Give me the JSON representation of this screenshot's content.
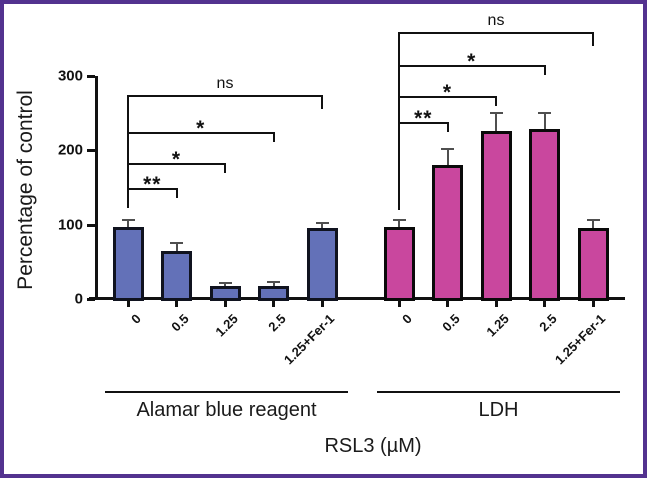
{
  "figure": {
    "border_color": "#53328f",
    "background_color": "#ffffff"
  },
  "chart_data": {
    "type": "bar",
    "title": "",
    "ylabel": "Percentage of control",
    "xlabel": "RSL3 (µM)",
    "ylim": [
      0,
      300
    ],
    "yticks": [
      0,
      100,
      200,
      300
    ],
    "grid": false,
    "legend": null,
    "categories": [
      "0",
      "0.5",
      "1.25",
      "2.5",
      "1.25+Fer-1"
    ],
    "axis_color": "#111111",
    "error_bar_color": "#4f4f4f",
    "groups": [
      {
        "name": "Alamar blue reagent",
        "bar_color": "#6371b8",
        "bar_border_color": "#10131f",
        "values": [
          96,
          65,
          17,
          17,
          95
        ],
        "errors_plus": [
          10,
          10,
          4,
          6,
          7
        ],
        "significance": [
          {
            "from": "0",
            "to": "0.5",
            "label": "**"
          },
          {
            "from": "0",
            "to": "1.25",
            "label": "*"
          },
          {
            "from": "0",
            "to": "2.5",
            "label": "*"
          },
          {
            "from": "0",
            "to": "1.25+Fer-1",
            "label": "ns"
          }
        ]
      },
      {
        "name": "LDH",
        "bar_color": "#c9479e",
        "bar_border_color": "#0a0a0a",
        "values": [
          96,
          180,
          225,
          228,
          95
        ],
        "errors_plus": [
          10,
          21,
          24,
          22,
          11
        ],
        "significance": [
          {
            "from": "0",
            "to": "0.5",
            "label": "**"
          },
          {
            "from": "0",
            "to": "1.25",
            "label": "*"
          },
          {
            "from": "0",
            "to": "2.5",
            "label": "*"
          },
          {
            "from": "0",
            "to": "1.25+Fer-1",
            "label": "ns"
          }
        ]
      }
    ]
  }
}
